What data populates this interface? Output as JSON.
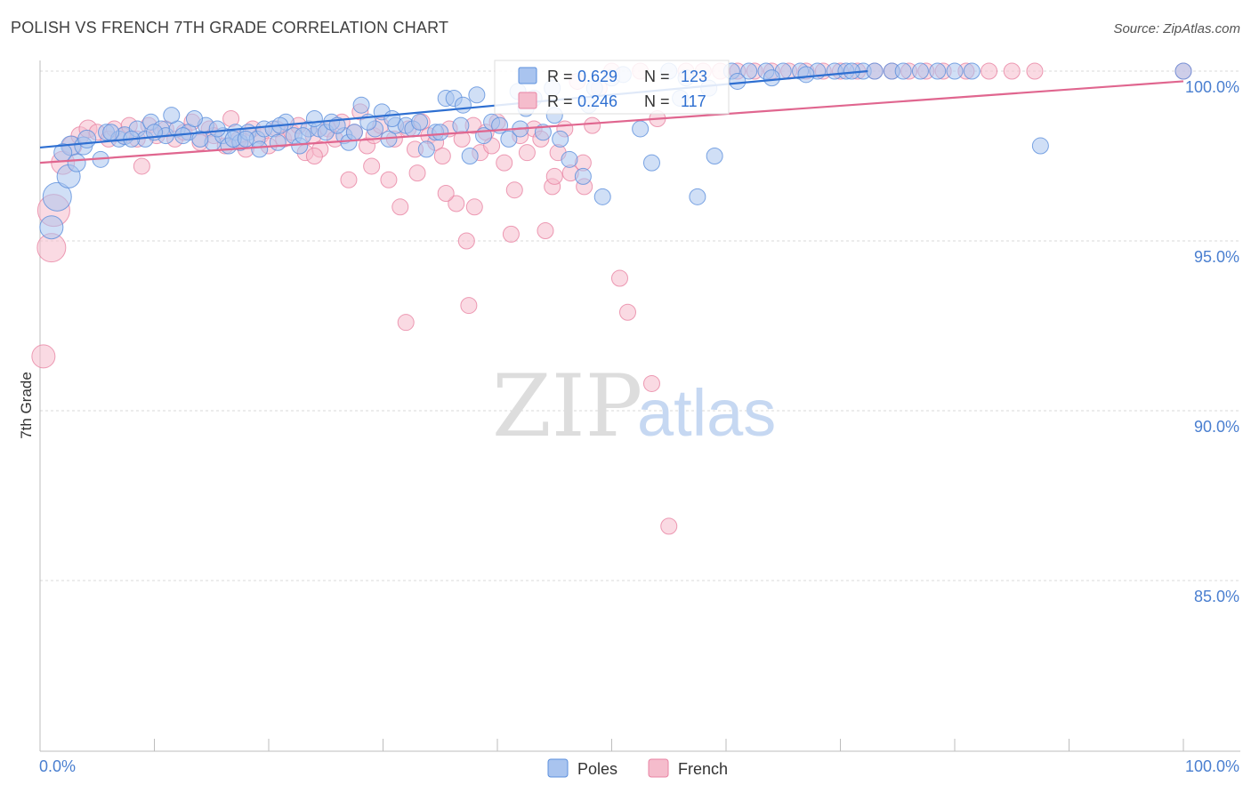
{
  "header": {
    "title": "POLISH VS FRENCH 7TH GRADE CORRELATION CHART",
    "source": "Source: ZipAtlas.com"
  },
  "watermark": {
    "zip": "ZIP",
    "atlas": "atlas"
  },
  "stats": {
    "poles": {
      "r_label": "R =",
      "r_value": "0.629",
      "n_label": "N =",
      "n_value": "123"
    },
    "french": {
      "r_label": "R =",
      "r_value": "0.246",
      "n_label": "N =",
      "n_value": "117"
    }
  },
  "colors": {
    "poles_fill": "#a9c4ef",
    "poles_stroke": "#5b8fdc",
    "poles_line": "#2e6fd1",
    "french_fill": "#f5bccc",
    "french_stroke": "#e883a3",
    "french_line": "#e0668f",
    "tick_text": "#4a7fd0",
    "grid": "#d9d9d9"
  },
  "chart_data": {
    "type": "scatter",
    "title": "POLISH VS FRENCH 7TH GRADE CORRELATION CHART",
    "xlabel": "",
    "ylabel": "7th Grade",
    "xlim": [
      0,
      100
    ],
    "ylim": [
      80.5,
      100.35
    ],
    "x_tick_labels": [
      "0.0%",
      "100.0%"
    ],
    "y_ticks": [
      100,
      95,
      90,
      85
    ],
    "y_tick_labels": [
      "100.0%",
      "95.0%",
      "90.0%",
      "85.0%"
    ],
    "legend": [
      "Poles",
      "French"
    ],
    "trend_lines": [
      {
        "series": "Poles",
        "x": [
          0,
          72.4
        ],
        "y": [
          97.75,
          100.0
        ]
      },
      {
        "series": "French",
        "x": [
          0,
          100
        ],
        "y": [
          97.3,
          99.7
        ]
      }
    ],
    "series": [
      {
        "name": "Poles",
        "points": [
          [
            1.5,
            96.3,
            16
          ],
          [
            1.0,
            95.4,
            13
          ],
          [
            2.5,
            96.9,
            13
          ],
          [
            2.7,
            97.8,
            11
          ],
          [
            3.8,
            97.8,
            10
          ],
          [
            4.1,
            98.0,
            10
          ],
          [
            5.3,
            97.4,
            9
          ],
          [
            5.8,
            98.2,
            9
          ],
          [
            6.9,
            98.0,
            9
          ],
          [
            7.4,
            98.1,
            10
          ],
          [
            8.5,
            98.3,
            9
          ],
          [
            9.2,
            98.0,
            9
          ],
          [
            9.7,
            98.5,
            9
          ],
          [
            10.6,
            98.3,
            9
          ],
          [
            11.0,
            98.1,
            9
          ],
          [
            12.0,
            98.3,
            9
          ],
          [
            13.0,
            98.2,
            9
          ],
          [
            14.5,
            98.4,
            9
          ],
          [
            15.1,
            97.9,
            9
          ],
          [
            16.0,
            98.1,
            9
          ],
          [
            16.5,
            97.8,
            9
          ],
          [
            17.1,
            98.2,
            9
          ],
          [
            17.5,
            97.9,
            9
          ],
          [
            18.2,
            98.2,
            9
          ],
          [
            16.9,
            98.0,
            9
          ],
          [
            19.0,
            98.0,
            9
          ],
          [
            19.6,
            98.3,
            9
          ],
          [
            19.2,
            97.7,
            9
          ],
          [
            20.4,
            98.3,
            9
          ],
          [
            20.8,
            97.9,
            9
          ],
          [
            21.5,
            98.5,
            9
          ],
          [
            22.2,
            98.1,
            9
          ],
          [
            22.7,
            97.8,
            9
          ],
          [
            23.5,
            98.3,
            9
          ],
          [
            24.4,
            98.3,
            9
          ],
          [
            25.0,
            98.2,
            9
          ],
          [
            25.5,
            98.5,
            9
          ],
          [
            26.6,
            98.1,
            9
          ],
          [
            27.0,
            97.9,
            9
          ],
          [
            28.1,
            99.0,
            9
          ],
          [
            29.3,
            98.3,
            9
          ],
          [
            29.9,
            98.8,
            9
          ],
          [
            30.5,
            98.0,
            9
          ],
          [
            31.1,
            98.4,
            9
          ],
          [
            32.0,
            98.4,
            9
          ],
          [
            32.6,
            98.3,
            9
          ],
          [
            33.2,
            98.5,
            9
          ],
          [
            33.8,
            97.7,
            9
          ],
          [
            34.6,
            98.2,
            9
          ],
          [
            35.5,
            99.2,
            9
          ],
          [
            36.2,
            99.2,
            9
          ],
          [
            36.8,
            98.4,
            9
          ],
          [
            37.6,
            97.5,
            9
          ],
          [
            38.2,
            99.3,
            9
          ],
          [
            38.8,
            98.1,
            9
          ],
          [
            39.5,
            98.5,
            9
          ],
          [
            40.2,
            98.4,
            9
          ],
          [
            41.0,
            98.0,
            9
          ],
          [
            41.8,
            99.4,
            9
          ],
          [
            42.5,
            98.9,
            9
          ],
          [
            43.2,
            99.2,
            9
          ],
          [
            44.0,
            98.2,
            9
          ],
          [
            44.8,
            99.5,
            9
          ],
          [
            45.5,
            98.0,
            9
          ],
          [
            46.3,
            97.4,
            9
          ],
          [
            47.5,
            96.9,
            9
          ],
          [
            48.5,
            99.5,
            9
          ],
          [
            49.2,
            96.3,
            9
          ],
          [
            50.0,
            99.8,
            9
          ],
          [
            51.0,
            99.9,
            9
          ],
          [
            52.5,
            98.3,
            9
          ],
          [
            53.5,
            97.3,
            9
          ],
          [
            55.0,
            100.0,
            9
          ],
          [
            56.5,
            99.8,
            9
          ],
          [
            57.5,
            96.3,
            9
          ],
          [
            59.0,
            97.5,
            9
          ],
          [
            60.5,
            100.0,
            9
          ],
          [
            62.0,
            100.0,
            9
          ],
          [
            63.5,
            100.0,
            9
          ],
          [
            65.0,
            100.0,
            9
          ],
          [
            66.5,
            100.0,
            9
          ],
          [
            68.0,
            100.0,
            9
          ],
          [
            69.5,
            100.0,
            9
          ],
          [
            70.5,
            100.0,
            9
          ],
          [
            72.0,
            100.0,
            9
          ],
          [
            73.0,
            100.0,
            9
          ],
          [
            74.5,
            100.0,
            9
          ],
          [
            75.5,
            100.0,
            9
          ],
          [
            77.0,
            100.0,
            9
          ],
          [
            78.5,
            100.0,
            9
          ],
          [
            80.0,
            100.0,
            9
          ],
          [
            81.5,
            100.0,
            9
          ],
          [
            87.5,
            97.8,
            9
          ],
          [
            100.0,
            100.0,
            9
          ],
          [
            13.5,
            98.6,
            9
          ],
          [
            26.0,
            98.4,
            9
          ],
          [
            30.8,
            98.6,
            9
          ],
          [
            35.0,
            98.2,
            9
          ],
          [
            37.0,
            99.0,
            9
          ],
          [
            42.0,
            98.3,
            9
          ],
          [
            45.0,
            98.7,
            9
          ],
          [
            48.0,
            99.0,
            9
          ],
          [
            56.0,
            99.2,
            9
          ],
          [
            58.5,
            99.5,
            9
          ],
          [
            61.0,
            99.7,
            9
          ],
          [
            64.0,
            99.8,
            9
          ],
          [
            67.0,
            99.9,
            9
          ],
          [
            71.0,
            100.0,
            9
          ],
          [
            2.0,
            97.6,
            10
          ],
          [
            3.2,
            97.3,
            10
          ],
          [
            6.2,
            98.2,
            9
          ],
          [
            8.0,
            98.0,
            9
          ],
          [
            10.0,
            98.2,
            9
          ],
          [
            11.5,
            98.7,
            9
          ],
          [
            12.5,
            98.1,
            9
          ],
          [
            14.0,
            98.0,
            9
          ],
          [
            15.5,
            98.3,
            9
          ],
          [
            18.0,
            98.0,
            9
          ],
          [
            21.0,
            98.4,
            9
          ],
          [
            23.0,
            98.1,
            9
          ],
          [
            24.0,
            98.6,
            9
          ],
          [
            27.5,
            98.2,
            9
          ],
          [
            28.7,
            98.5,
            9
          ]
        ]
      },
      {
        "name": "French",
        "points": [
          [
            0.3,
            91.6,
            13
          ],
          [
            1.0,
            94.8,
            16
          ],
          [
            1.2,
            95.9,
            18
          ],
          [
            2.0,
            97.3,
            13
          ],
          [
            2.8,
            97.8,
            11
          ],
          [
            3.5,
            98.1,
            10
          ],
          [
            4.2,
            98.3,
            10
          ],
          [
            5.0,
            98.2,
            9
          ],
          [
            6.0,
            98.0,
            9
          ],
          [
            6.5,
            98.3,
            9
          ],
          [
            7.3,
            98.1,
            9
          ],
          [
            7.8,
            98.4,
            9
          ],
          [
            8.5,
            98.0,
            9
          ],
          [
            8.9,
            97.2,
            9
          ],
          [
            9.5,
            98.4,
            9
          ],
          [
            10.2,
            98.1,
            9
          ],
          [
            11.0,
            98.3,
            9
          ],
          [
            11.8,
            98.0,
            9
          ],
          [
            12.6,
            98.2,
            9
          ],
          [
            13.3,
            98.5,
            9
          ],
          [
            14.0,
            97.9,
            9
          ],
          [
            14.8,
            98.3,
            9
          ],
          [
            15.2,
            98.1,
            9
          ],
          [
            16.2,
            97.8,
            9
          ],
          [
            16.7,
            98.6,
            9
          ],
          [
            17.4,
            98.0,
            9
          ],
          [
            18.0,
            97.7,
            9
          ],
          [
            18.6,
            98.3,
            9
          ],
          [
            19.3,
            98.1,
            9
          ],
          [
            20.0,
            97.8,
            9
          ],
          [
            20.7,
            98.3,
            9
          ],
          [
            21.3,
            98.0,
            9
          ],
          [
            22.0,
            98.2,
            9
          ],
          [
            22.6,
            98.4,
            9
          ],
          [
            23.2,
            97.6,
            9
          ],
          [
            23.9,
            98.1,
            9
          ],
          [
            24.5,
            97.7,
            9
          ],
          [
            25.2,
            98.3,
            9
          ],
          [
            25.8,
            98.0,
            9
          ],
          [
            26.4,
            98.5,
            9
          ],
          [
            27.0,
            96.8,
            9
          ],
          [
            27.5,
            98.2,
            9
          ],
          [
            28.0,
            98.8,
            9
          ],
          [
            28.6,
            97.8,
            9
          ],
          [
            29.2,
            98.1,
            9
          ],
          [
            29.8,
            98.4,
            9
          ],
          [
            30.5,
            96.8,
            9
          ],
          [
            31.0,
            98.0,
            9
          ],
          [
            31.5,
            96.0,
            9
          ],
          [
            32.2,
            98.3,
            9
          ],
          [
            32.8,
            97.7,
            9
          ],
          [
            33.4,
            98.5,
            9
          ],
          [
            34.0,
            98.1,
            9
          ],
          [
            34.6,
            97.9,
            9
          ],
          [
            35.2,
            97.5,
            9
          ],
          [
            35.8,
            98.3,
            9
          ],
          [
            36.4,
            96.1,
            9
          ],
          [
            36.9,
            98.0,
            9
          ],
          [
            37.3,
            95.0,
            9
          ],
          [
            37.9,
            98.4,
            9
          ],
          [
            38.5,
            97.6,
            9
          ],
          [
            39.0,
            98.2,
            9
          ],
          [
            39.5,
            97.8,
            9
          ],
          [
            40.0,
            98.5,
            9
          ],
          [
            40.6,
            97.3,
            9
          ],
          [
            41.2,
            95.2,
            9
          ],
          [
            41.5,
            96.5,
            9
          ],
          [
            42.0,
            98.1,
            9
          ],
          [
            42.6,
            97.6,
            9
          ],
          [
            43.2,
            98.3,
            9
          ],
          [
            43.8,
            98.0,
            9
          ],
          [
            44.2,
            95.3,
            9
          ],
          [
            44.8,
            96.6,
            9
          ],
          [
            45.3,
            97.6,
            9
          ],
          [
            45.9,
            98.3,
            9
          ],
          [
            46.4,
            97.0,
            9
          ],
          [
            47.0,
            99.7,
            9
          ],
          [
            47.6,
            96.6,
            9
          ],
          [
            48.3,
            98.4,
            9
          ],
          [
            48.9,
            99.5,
            9
          ],
          [
            50.0,
            100.0,
            9
          ],
          [
            50.7,
            93.9,
            9
          ],
          [
            51.4,
            92.9,
            9
          ],
          [
            52.5,
            100.0,
            9
          ],
          [
            53.5,
            90.8,
            9
          ],
          [
            54.0,
            98.6,
            9
          ],
          [
            55.0,
            86.6,
            9
          ],
          [
            56.5,
            100.0,
            9
          ],
          [
            58.0,
            100.0,
            9
          ],
          [
            59.5,
            100.0,
            9
          ],
          [
            61.0,
            100.0,
            9
          ],
          [
            62.5,
            100.0,
            9
          ],
          [
            64.0,
            100.0,
            9
          ],
          [
            65.5,
            100.0,
            9
          ],
          [
            67.0,
            100.0,
            9
          ],
          [
            68.5,
            100.0,
            9
          ],
          [
            70.0,
            100.0,
            9
          ],
          [
            71.5,
            100.0,
            9
          ],
          [
            73.0,
            100.0,
            9
          ],
          [
            74.5,
            100.0,
            9
          ],
          [
            76.0,
            100.0,
            9
          ],
          [
            77.5,
            100.0,
            9
          ],
          [
            79.0,
            100.0,
            9
          ],
          [
            81.0,
            100.0,
            9
          ],
          [
            83.0,
            100.0,
            9
          ],
          [
            85.0,
            100.0,
            9
          ],
          [
            87.0,
            100.0,
            9
          ],
          [
            100.0,
            100.0,
            9
          ],
          [
            32.0,
            92.6,
            9
          ],
          [
            37.5,
            93.1,
            9
          ],
          [
            29.0,
            97.2,
            9
          ],
          [
            33.0,
            97.0,
            9
          ],
          [
            24.0,
            97.5,
            9
          ],
          [
            35.5,
            96.4,
            9
          ],
          [
            38.0,
            96.0,
            9
          ],
          [
            45.0,
            96.9,
            9
          ],
          [
            47.5,
            97.3,
            9
          ]
        ]
      }
    ]
  }
}
